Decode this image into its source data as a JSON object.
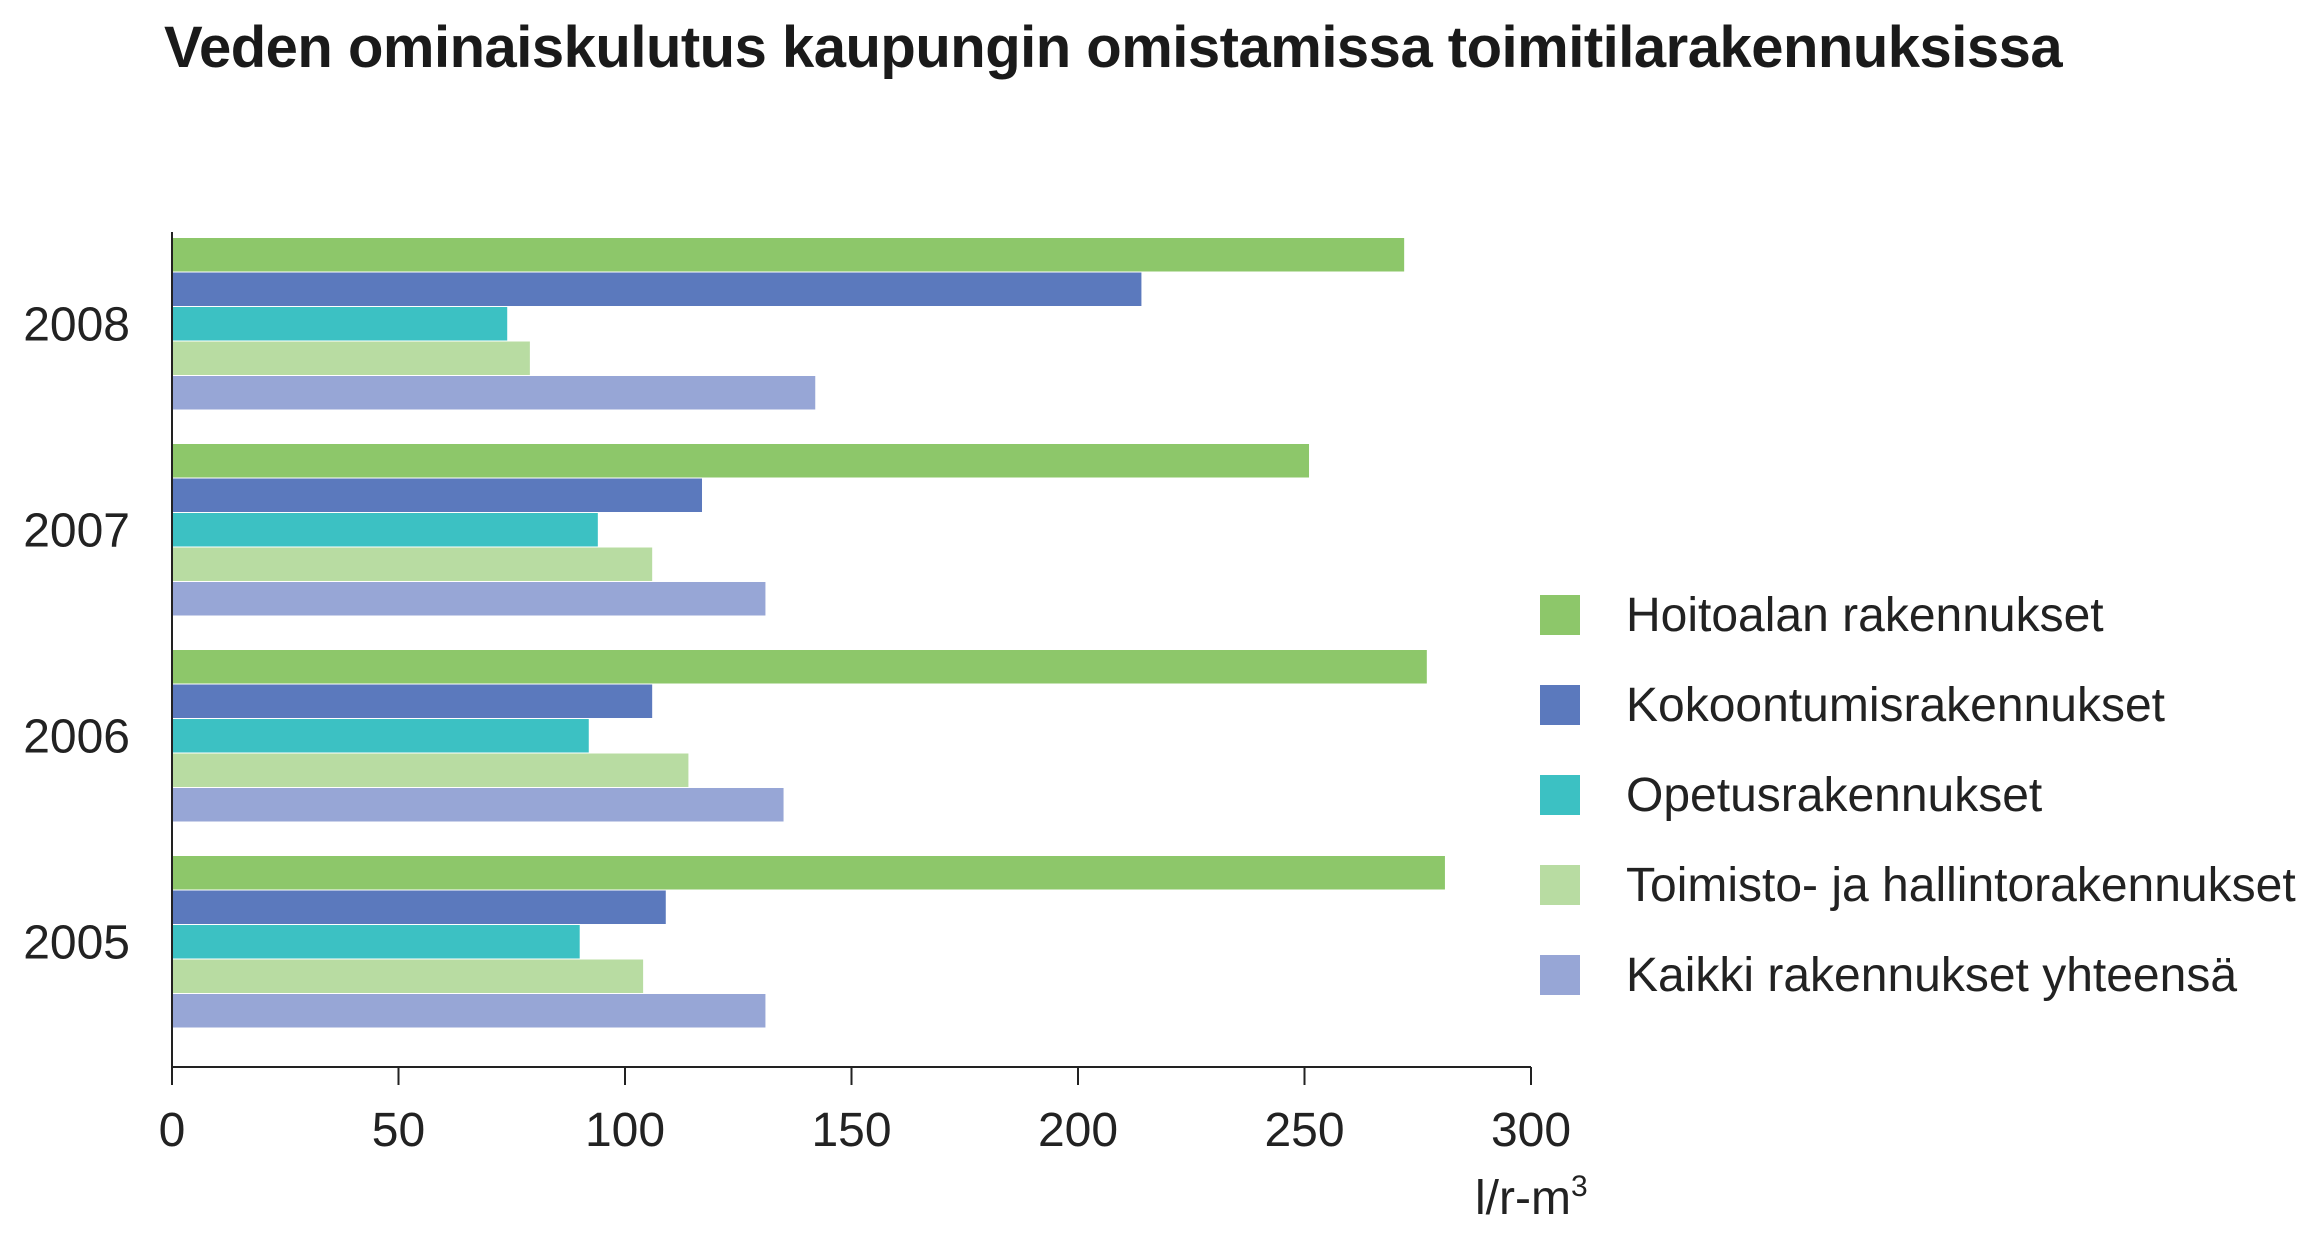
{
  "title": "Veden ominaiskulutus kaupungin omistamissa toimitilarakennuksissa",
  "unit_main": "l/r-m",
  "unit_sup": "3",
  "chart_data": {
    "type": "bar",
    "orientation": "horizontal",
    "categories": [
      "2008",
      "2007",
      "2006",
      "2005"
    ],
    "series": [
      {
        "name": "Hoitoalan rakennukset",
        "color": "#8dc76a",
        "values": [
          272,
          251,
          277,
          281
        ]
      },
      {
        "name": "Kokoontumisrakennukset",
        "color": "#5b79bd",
        "values": [
          214,
          117,
          106,
          109
        ]
      },
      {
        "name": "Opetusrakennukset",
        "color": "#3cc1c3",
        "values": [
          74,
          94,
          92,
          90
        ]
      },
      {
        "name": "Toimisto- ja hallintorakennukset",
        "color": "#b8dca2",
        "values": [
          79,
          106,
          114,
          104
        ]
      },
      {
        "name": "Kaikki rakennukset yhteensä",
        "color": "#97a6d6",
        "values": [
          142,
          131,
          135,
          131
        ]
      }
    ],
    "xlim": [
      0,
      300
    ],
    "xticks": [
      "0",
      "50",
      "100",
      "150",
      "200",
      "250",
      "300"
    ],
    "xlabel": "l/r-m³",
    "grid": false,
    "legend_position": "right"
  }
}
